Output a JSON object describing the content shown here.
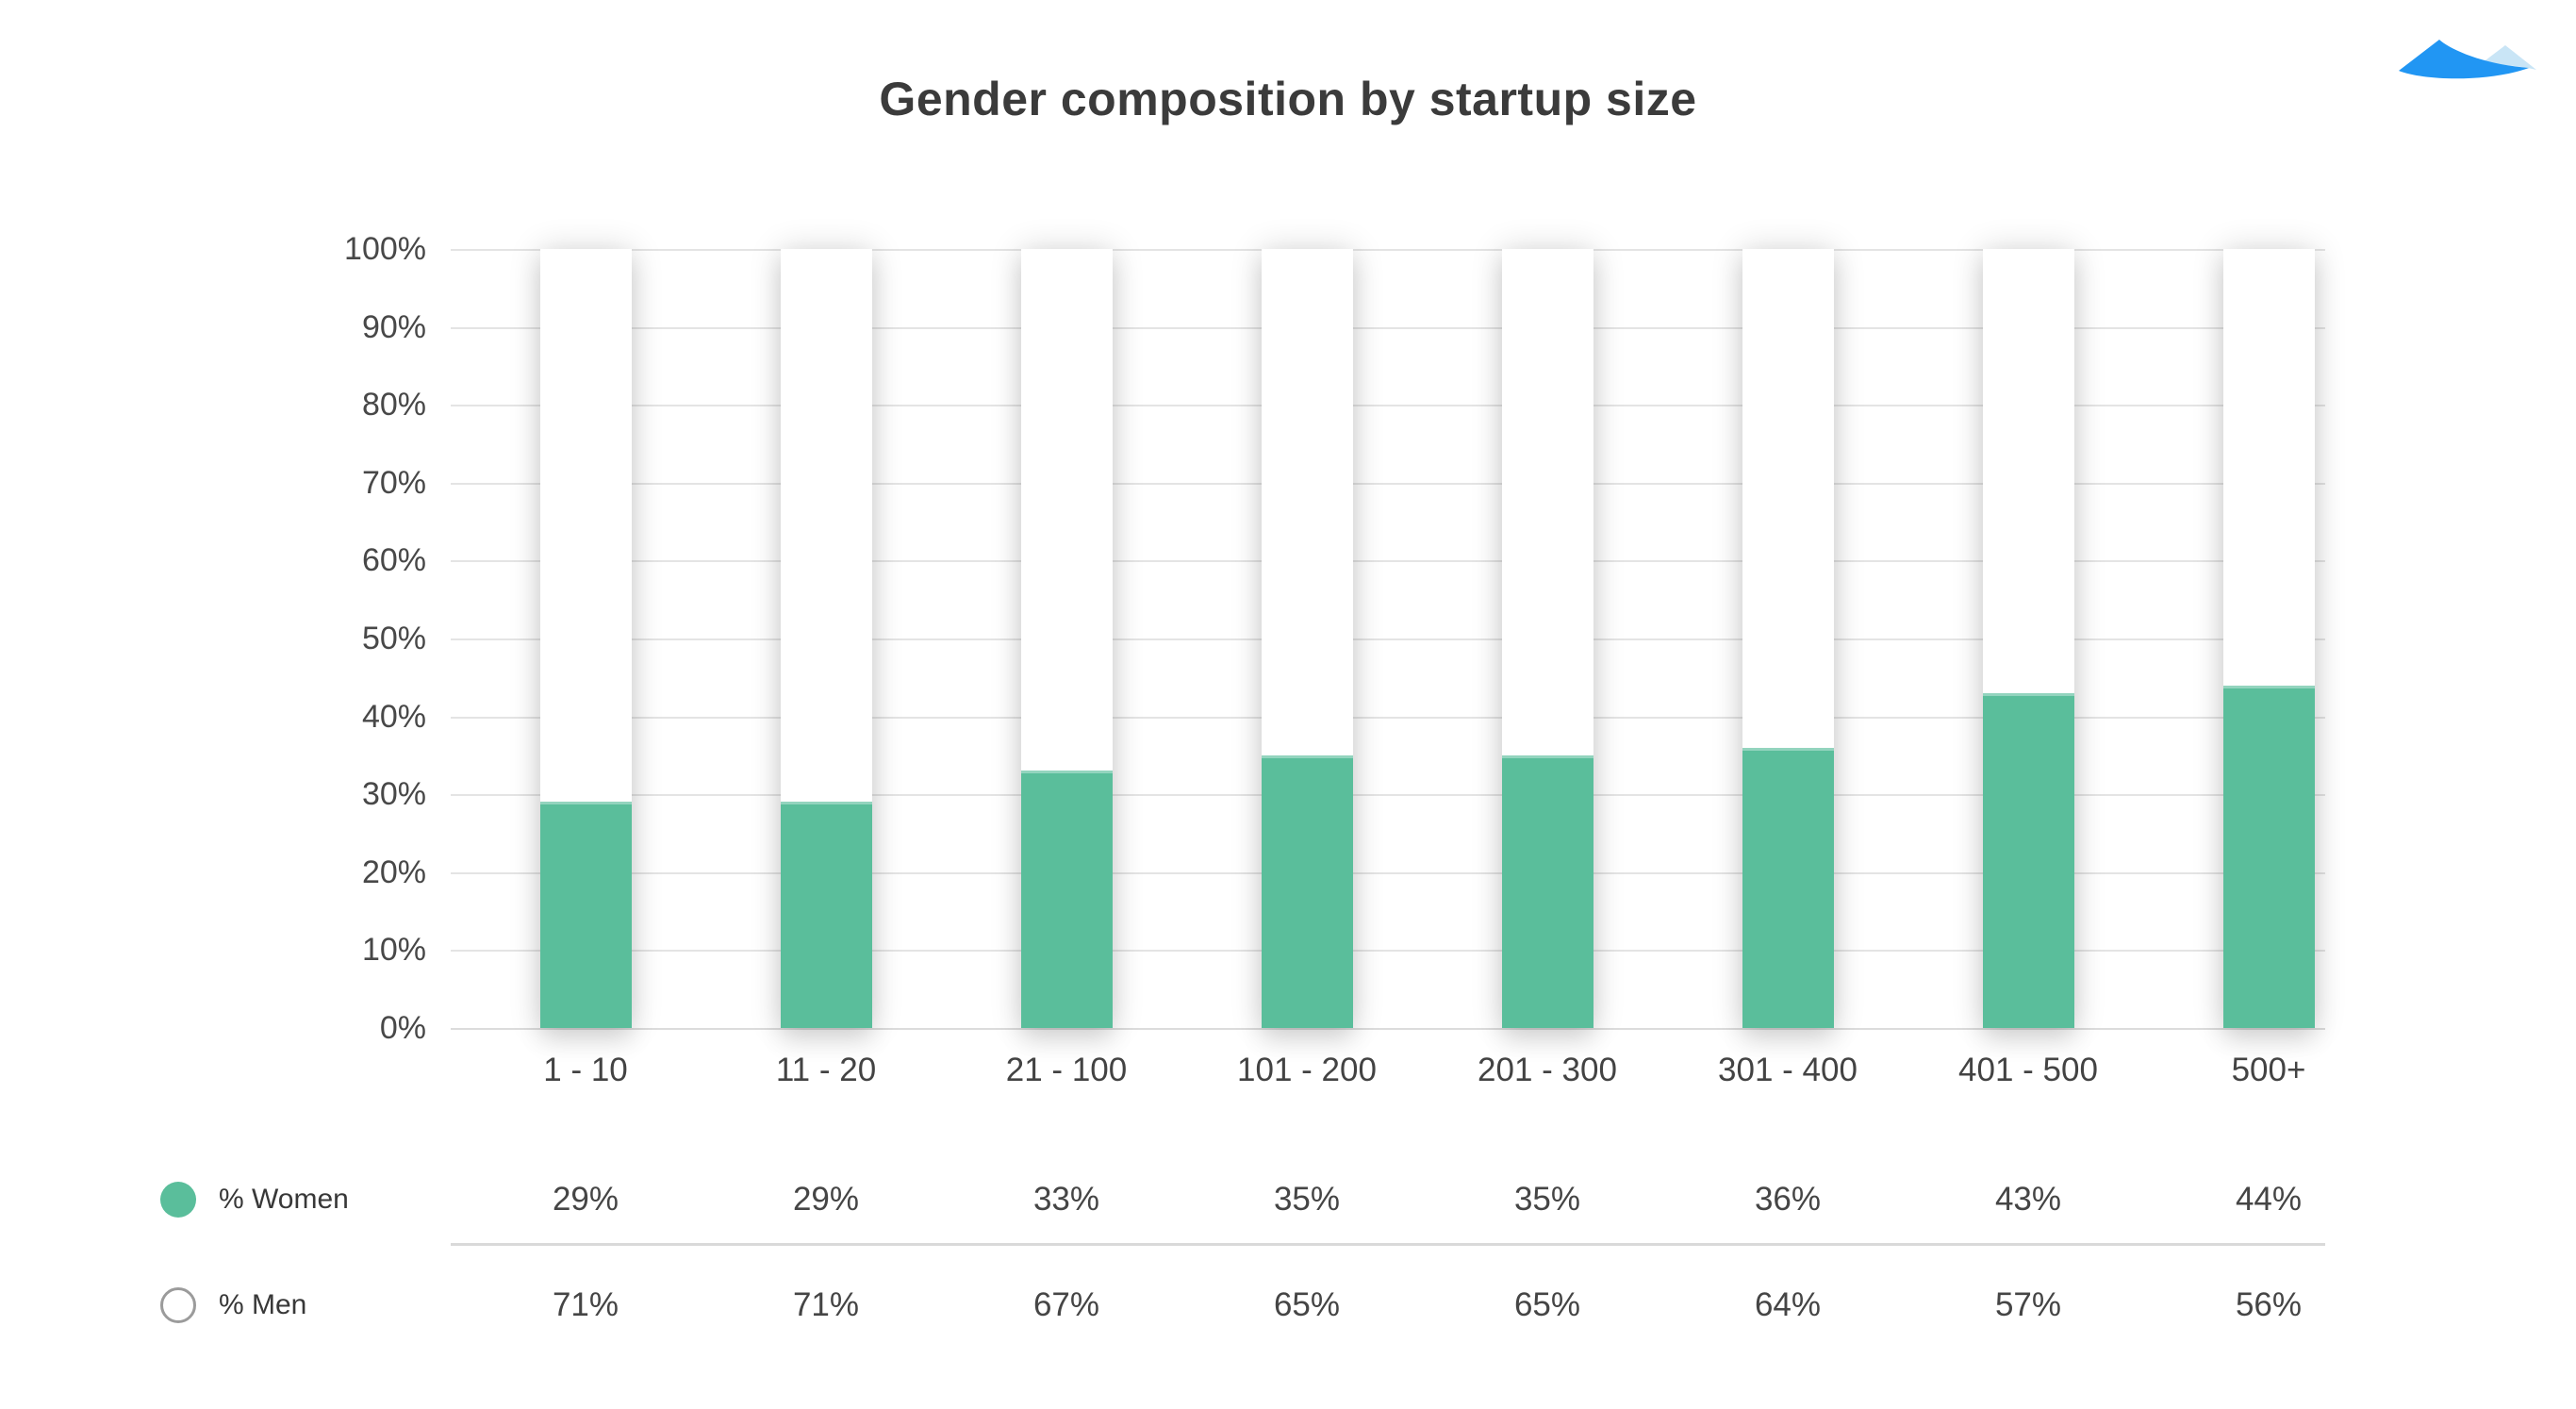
{
  "header": {
    "title": "Gender composition by startup size"
  },
  "logo": {
    "name": "mountain-logo",
    "primary_color": "#2196F3",
    "secondary_color": "#C9E5F6"
  },
  "chart_data": {
    "type": "bar",
    "stacked": true,
    "title": "Gender composition by startup size",
    "categories": [
      "1 - 10",
      "11 - 20",
      "21 - 100",
      "101 - 200",
      "201 - 300",
      "301 - 400",
      "401 - 500",
      "500+"
    ],
    "series": [
      {
        "name": "% Women",
        "color": "#5ABE9B",
        "marker": "filled-circle",
        "values": [
          29,
          29,
          33,
          35,
          35,
          36,
          43,
          44
        ],
        "labels": [
          "29%",
          "29%",
          "33%",
          "35%",
          "35%",
          "36%",
          "43%",
          "44%"
        ]
      },
      {
        "name": "% Men",
        "color": "#ffffff",
        "marker": "outlined-circle",
        "values": [
          71,
          71,
          67,
          65,
          65,
          64,
          57,
          56
        ],
        "labels": [
          "71%",
          "71%",
          "67%",
          "65%",
          "65%",
          "64%",
          "57%",
          "56%"
        ]
      }
    ],
    "y_axis": {
      "min": 0,
      "max": 100,
      "grid": true,
      "ticks": [
        "100%",
        "90%",
        "80%",
        "70%",
        "60%",
        "50%",
        "40%",
        "30%",
        "20%",
        "10%",
        "0%"
      ]
    },
    "x_axis_label": "",
    "legend_position": "bottom-left-table"
  },
  "colors": {
    "background": "#ffffff",
    "grid": "#e4e4e4",
    "divider": "#d9d9d9",
    "title_text": "#3b3b3b",
    "axis_text": "#484848",
    "men_circle_outline": "#9b9b9b",
    "women_green": "#5ABE9B"
  }
}
